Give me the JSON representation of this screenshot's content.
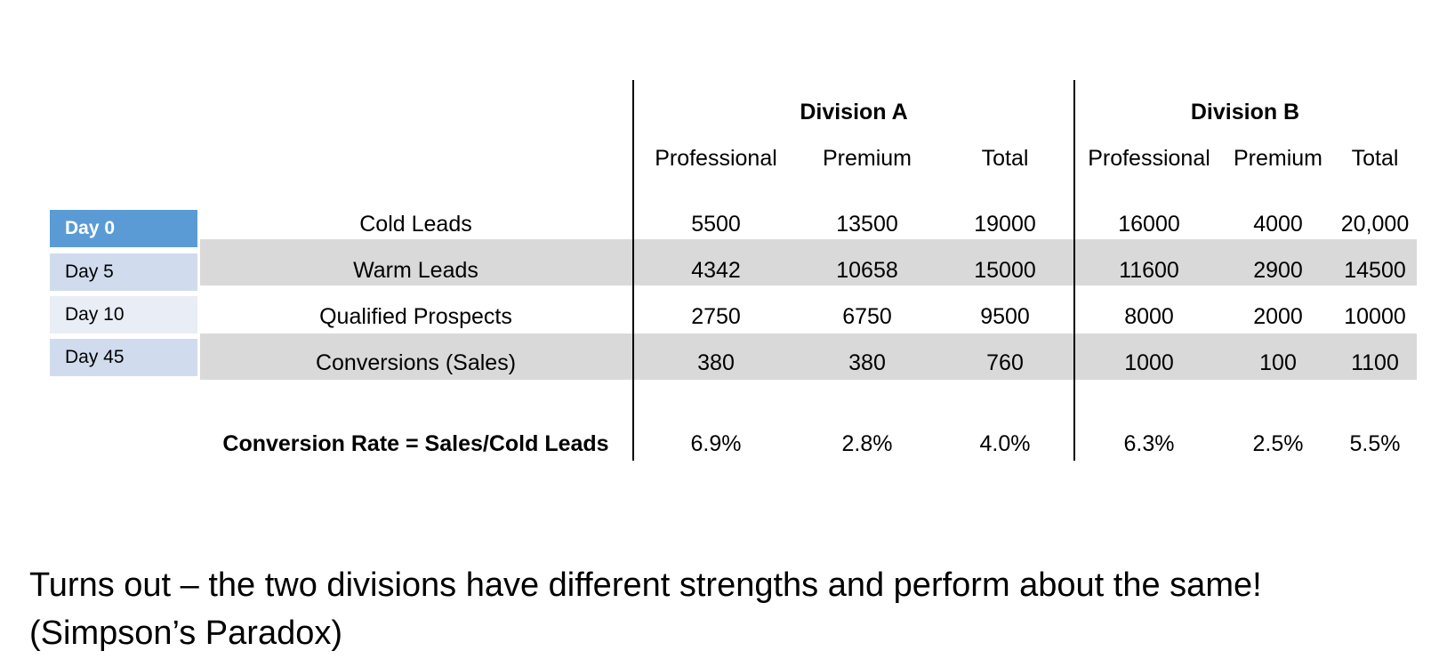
{
  "divisions": {
    "a": {
      "title": "Division A"
    },
    "b": {
      "title": "Division B"
    }
  },
  "subheaders": {
    "a": [
      "Professional",
      "Premium",
      "Total"
    ],
    "b": [
      "Professional",
      "Premium",
      "Total"
    ]
  },
  "day_labels": [
    {
      "label": "Day 0",
      "color": "#5b9bd5",
      "text_color": "#ffffff"
    },
    {
      "label": "Day 5",
      "color": "#d0dcee",
      "text_color": "#000000"
    },
    {
      "label": "Day 10",
      "color": "#e8edf6",
      "text_color": "#000000"
    },
    {
      "label": "Day 45",
      "color": "#d0dcee",
      "text_color": "#000000"
    }
  ],
  "rows": [
    {
      "label": "Cold Leads",
      "a": [
        "5500",
        "13500",
        "19000"
      ],
      "b": [
        "16000",
        "4000",
        "20,000"
      ],
      "shaded": false
    },
    {
      "label": "Warm Leads",
      "a": [
        "4342",
        "10658",
        "15000"
      ],
      "b": [
        "11600",
        "2900",
        "14500"
      ],
      "shaded": true
    },
    {
      "label": "Qualified Prospects",
      "a": [
        "2750",
        "6750",
        "9500"
      ],
      "b": [
        "8000",
        "2000",
        "10000"
      ],
      "shaded": false
    },
    {
      "label": "Conversions (Sales)",
      "a": [
        "380",
        "380",
        "760"
      ],
      "b": [
        "1000",
        "100",
        "1100"
      ],
      "shaded": true
    }
  ],
  "rate_row": {
    "label": "Conversion Rate = Sales/Cold Leads",
    "a": [
      "6.9%",
      "2.8%",
      "4.0%"
    ],
    "b": [
      "6.3%",
      "2.5%",
      "5.5%"
    ]
  },
  "caption": {
    "line1": "Turns out – the two divisions have different strengths and perform about the same!",
    "line2": "(Simpson’s Paradox)"
  },
  "colors": {
    "band": "#d9d9d9",
    "day0": "#5b9bd5"
  }
}
